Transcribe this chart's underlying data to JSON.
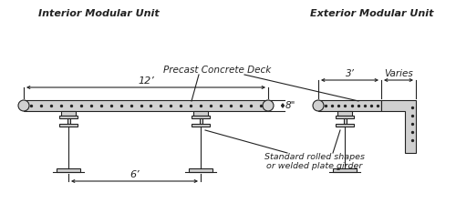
{
  "title_interior": "Interior Modular Unit",
  "title_exterior": "Exterior Modular Unit",
  "label_precast": "Precast Concrete Deck",
  "label_12ft": "12’",
  "label_8in": "8\"",
  "label_6ft": "6’",
  "label_3ft": "3’",
  "label_varies": "Varies",
  "label_girder": "Standard rolled shapes\nor welded plate girder",
  "bg_color": "#ffffff",
  "deck_color": "#d0d0d0",
  "line_color": "#222222",
  "dot_color": "#222222"
}
